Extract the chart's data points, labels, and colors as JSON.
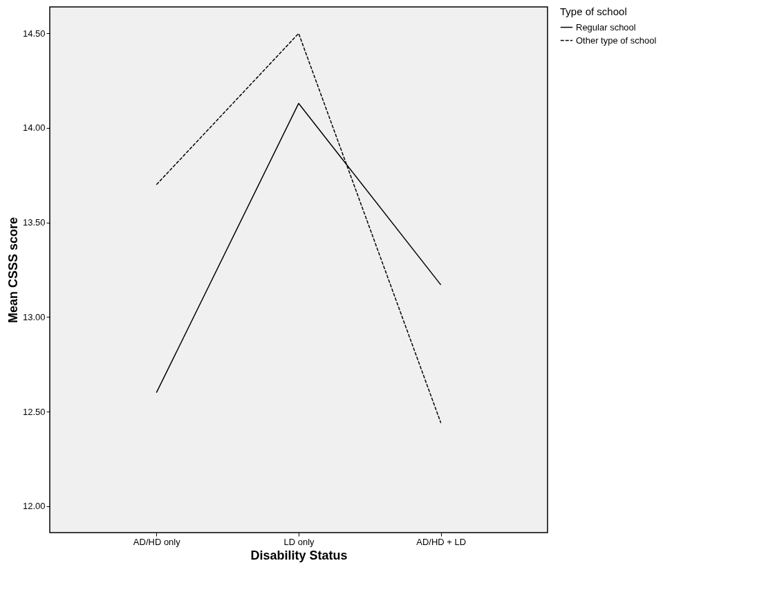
{
  "chart_data": {
    "type": "line",
    "xlabel": "Disability Status",
    "ylabel": "Mean CSSS score",
    "legend_title": "Type of school",
    "categories": [
      "AD/HD only",
      "LD only",
      "AD/HD + LD"
    ],
    "series": [
      {
        "name": "Regular school",
        "color": "#000000",
        "line_style": "solid",
        "values": [
          12.6,
          14.13,
          13.17
        ]
      },
      {
        "name": "Other type of school",
        "color": "#000000",
        "line_style": "dashed",
        "values": [
          13.7,
          14.5,
          12.44
        ]
      }
    ],
    "ylim": [
      11.86,
      14.64
    ],
    "yticks": [
      {
        "value": 12,
        "label": "12.00"
      },
      {
        "value": 12.5,
        "label": "12.50"
      },
      {
        "value": 13,
        "label": "13.00"
      },
      {
        "value": 13.5,
        "label": "13.50"
      },
      {
        "value": 14,
        "label": "14.00"
      },
      {
        "value": 14.5,
        "label": "14.50"
      }
    ],
    "grid": false,
    "legend": "top right",
    "marker": "none"
  }
}
